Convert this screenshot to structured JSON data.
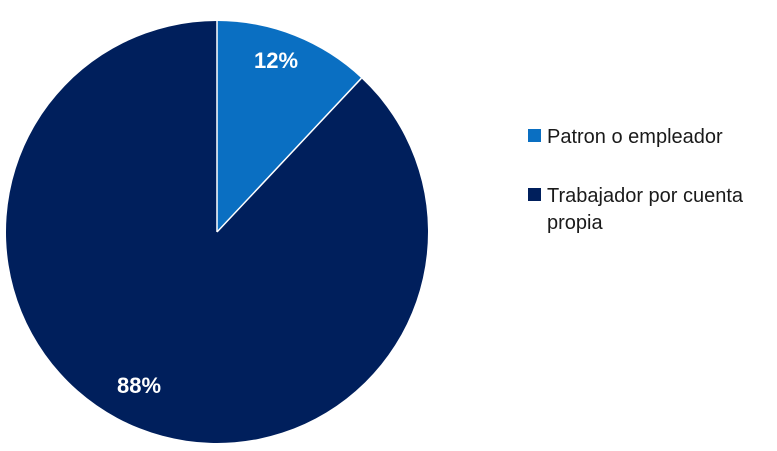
{
  "chart_data": {
    "type": "pie",
    "slices": [
      {
        "label": "Patron o empleador",
        "value": 12,
        "display": "12%",
        "color": "#0a6fc2"
      },
      {
        "label": "Trabajador por cuenta propia",
        "value": 88,
        "display": "88%",
        "color": "#001f5c"
      }
    ],
    "legend_position": "right",
    "start_angle": "top",
    "direction": "clockwise"
  }
}
